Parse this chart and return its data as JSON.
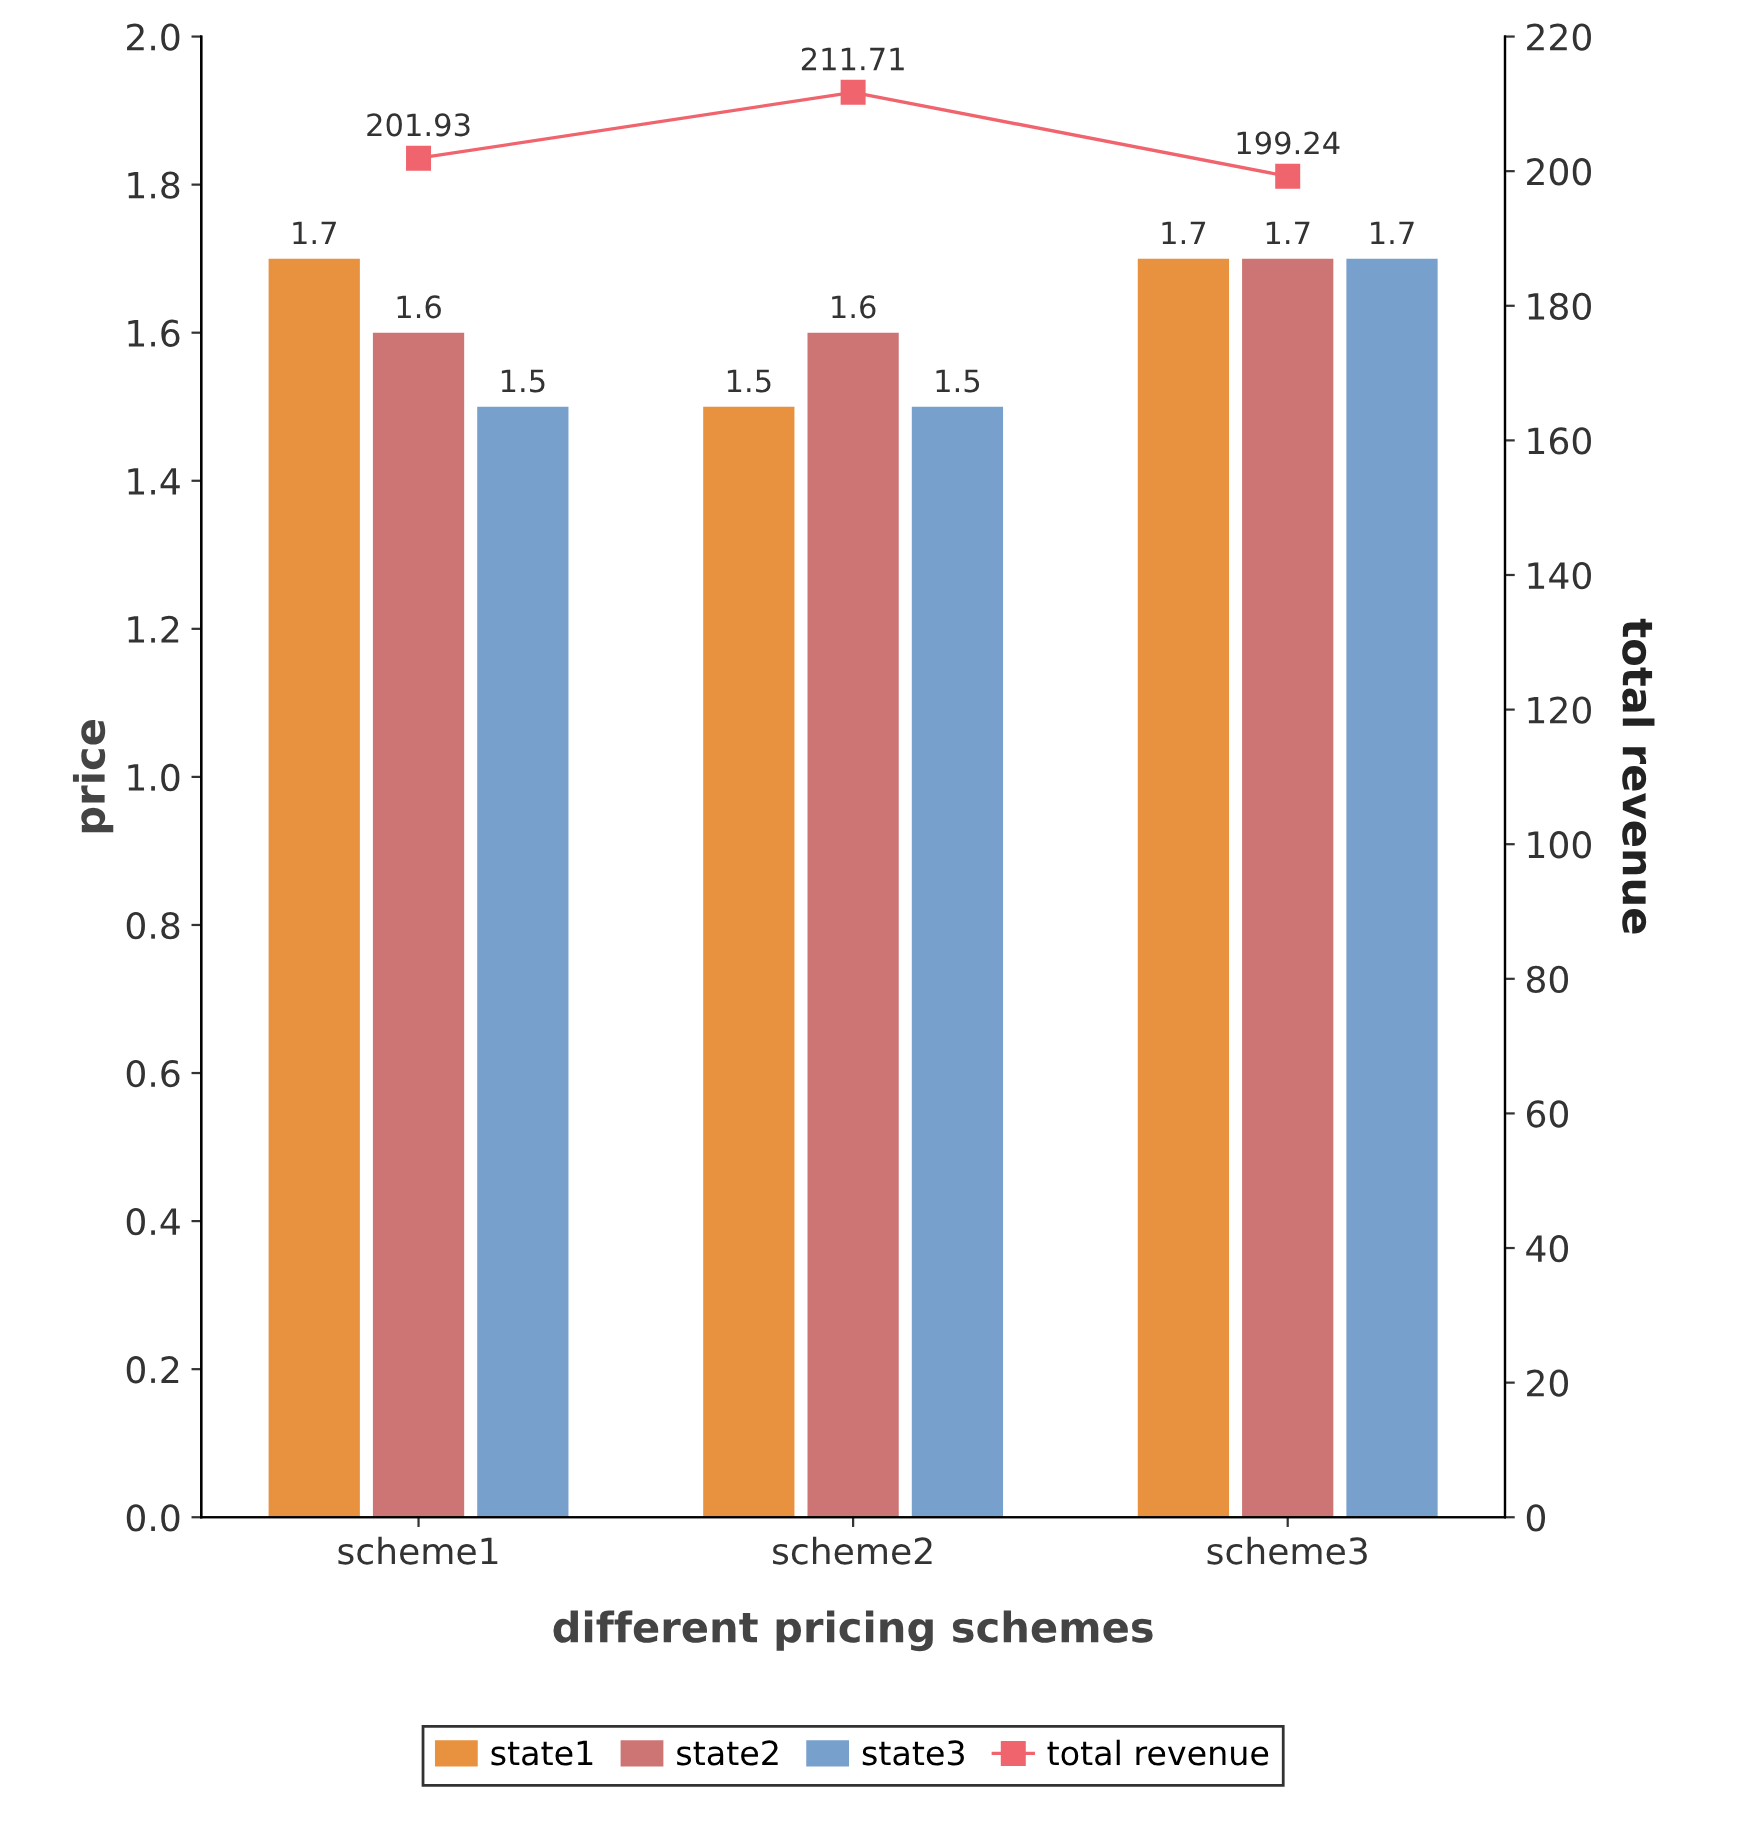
{
  "chart_data": {
    "type": "bar",
    "xlabel": "different pricing schemes",
    "ylabel": "price",
    "y2label": "total revenue",
    "categories": [
      "scheme1",
      "scheme2",
      "scheme3"
    ],
    "series": [
      {
        "name": "state1",
        "color": "#e8913f",
        "values": [
          1.7,
          1.5,
          1.7
        ]
      },
      {
        "name": "state2",
        "color": "#cd7575",
        "values": [
          1.6,
          1.6,
          1.7
        ]
      },
      {
        "name": "state3",
        "color": "#78a0cc",
        "values": [
          1.5,
          1.5,
          1.7
        ]
      },
      {
        "name": "total revenue",
        "type": "line",
        "axis": "y2",
        "color": "#f0646e",
        "marker": "square",
        "values": [
          201.93,
          211.71,
          199.24
        ]
      }
    ],
    "ylim": [
      0,
      2.0
    ],
    "yticks": [
      "0.0",
      "0.2",
      "0.4",
      "0.6",
      "0.8",
      "1.0",
      "1.2",
      "1.4",
      "1.6",
      "1.8",
      "2.0"
    ],
    "y2lim": [
      0,
      220
    ],
    "y2ticks": [
      0,
      20,
      40,
      60,
      80,
      100,
      120,
      140,
      160,
      180,
      200,
      220
    ],
    "data_labels": true,
    "grid": false,
    "legend": "bottom"
  }
}
